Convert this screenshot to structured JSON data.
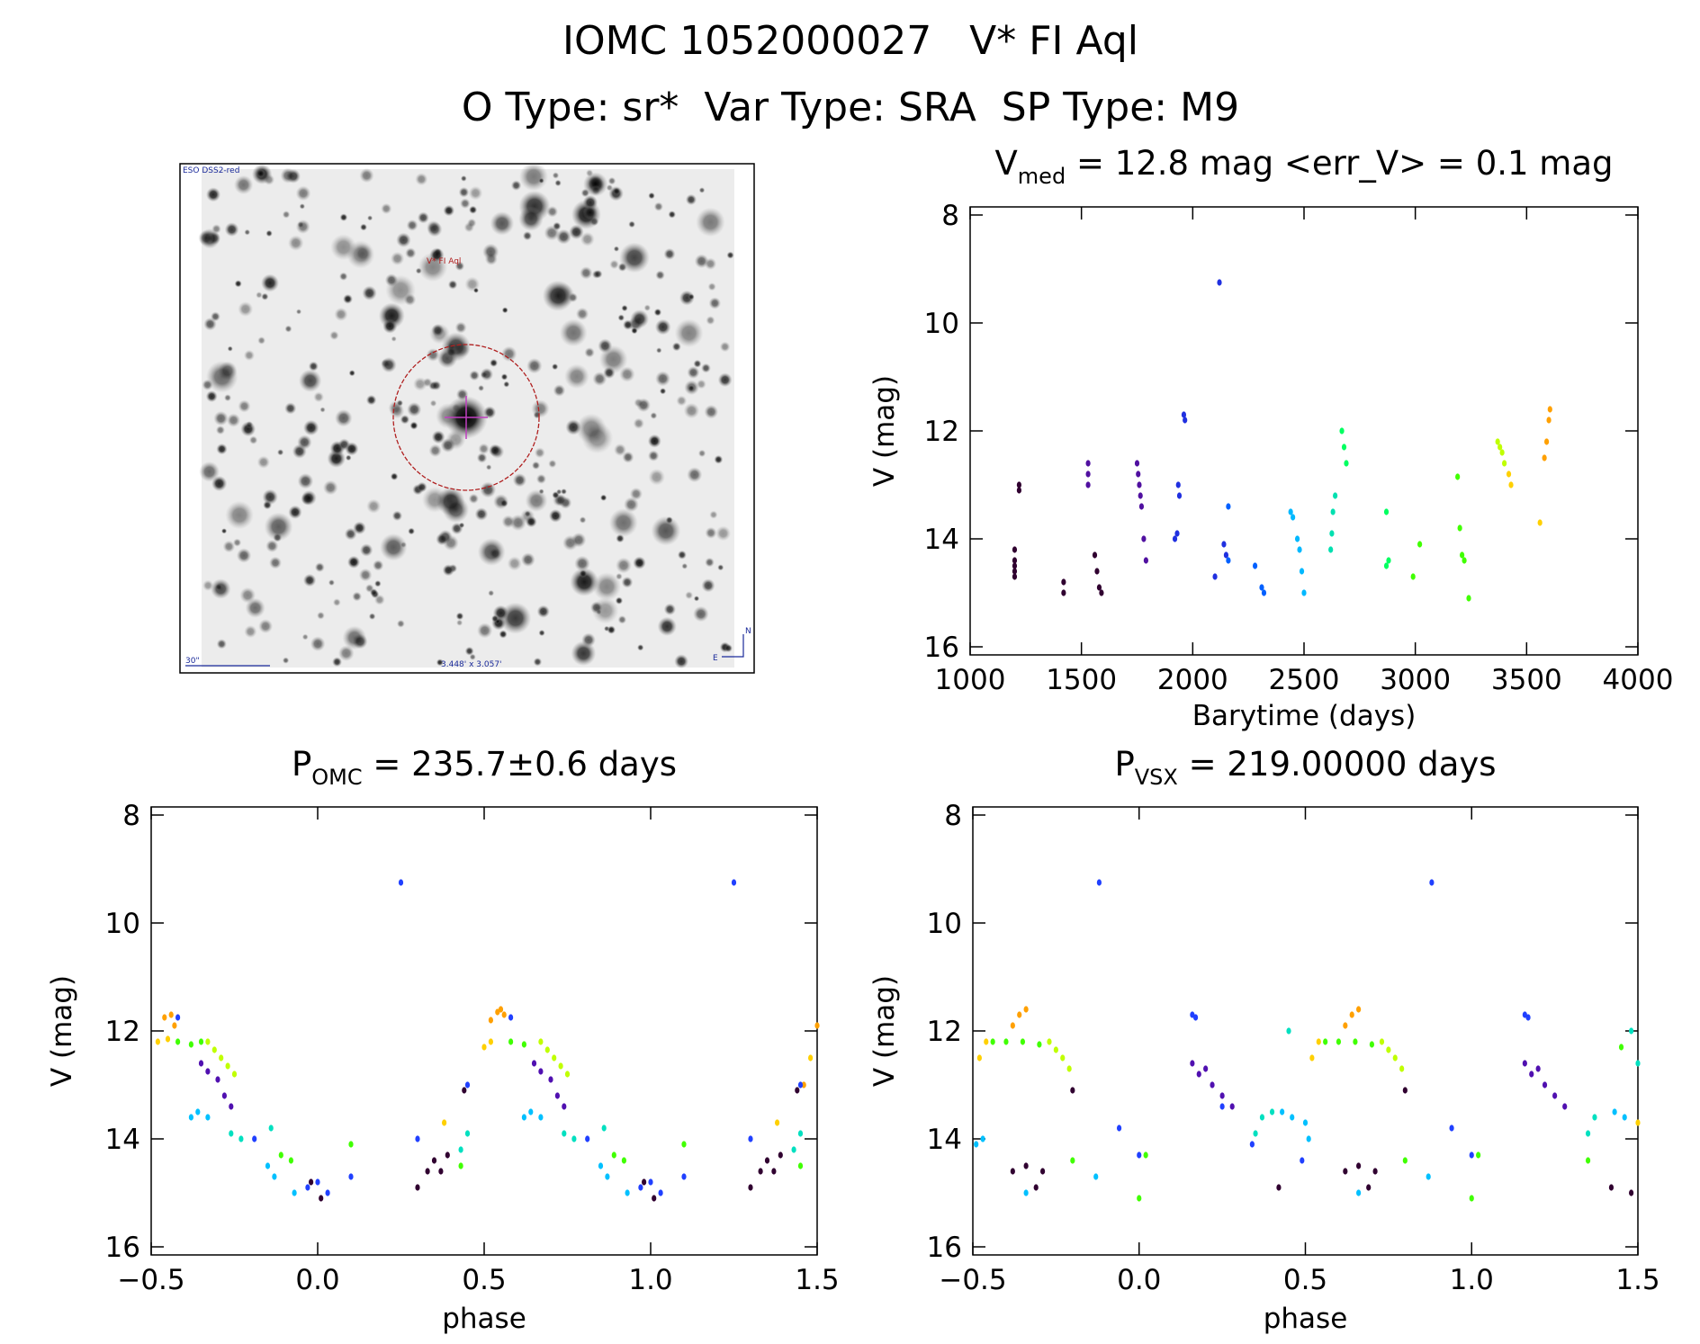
{
  "header": {
    "title": "IOMC 1052000027   V* FI Aql",
    "subtitle": "O Type: sr*  Var Type: SRA  SP Type: M9"
  },
  "image_panel": {
    "survey": "ESO DSS2-red",
    "target": "V* FI Aql",
    "scale": "30\"",
    "size": "3.448' x 3.057'",
    "north": "N",
    "east": "E"
  },
  "chart_data": [
    {
      "type": "scatter",
      "title": {
        "text": "V",
        "sub": "med",
        "rest": " = 12.8 mag <err_V> = 0.1 mag"
      },
      "x_label": "Barytime (days)",
      "y_label": "V (mag)",
      "xlim": [
        1000,
        4000
      ],
      "xticks": [
        1000,
        1500,
        2000,
        2500,
        3000,
        3500,
        4000
      ],
      "ylim": [
        16.15,
        7.85
      ],
      "yticks": [
        8,
        10,
        12,
        14,
        16
      ],
      "series": [
        {
          "color": "#300030",
          "x": [
            1200,
            1200,
            1200,
            1200,
            1200,
            1220,
            1220,
            1420,
            1420,
            1560,
            1570,
            1580,
            1590
          ],
          "values": [
            14.2,
            14.4,
            14.5,
            14.6,
            14.7,
            13.0,
            13.1,
            14.8,
            15.0,
            14.3,
            14.6,
            14.9,
            15.0
          ]
        },
        {
          "color": "#5010a0",
          "x": [
            1530,
            1530,
            1530,
            1750,
            1755,
            1760,
            1765,
            1770,
            1780,
            1790
          ],
          "values": [
            12.6,
            12.8,
            13.0,
            12.6,
            12.8,
            13.0,
            13.2,
            13.4,
            14.0,
            14.4
          ]
        },
        {
          "color": "#2030e0",
          "x": [
            1920,
            1930,
            1935,
            1940,
            1960,
            1965,
            2100,
            2120,
            2140,
            2150
          ],
          "values": [
            14.0,
            13.9,
            13.0,
            13.2,
            11.7,
            11.8,
            14.7,
            9.25,
            14.1,
            14.3
          ]
        },
        {
          "color": "#0060ff",
          "x": [
            2160,
            2160,
            2280,
            2310,
            2320
          ],
          "values": [
            13.4,
            14.4,
            14.5,
            14.9,
            15.0
          ]
        },
        {
          "color": "#00b8ff",
          "x": [
            2440,
            2450,
            2470,
            2480,
            2490,
            2500
          ],
          "values": [
            13.5,
            13.6,
            14.0,
            14.2,
            14.6,
            15.0
          ]
        },
        {
          "color": "#00e0b0",
          "x": [
            2620,
            2625,
            2630,
            2640
          ],
          "values": [
            14.2,
            13.9,
            13.5,
            13.2
          ]
        },
        {
          "color": "#00ff60",
          "x": [
            2670,
            2680,
            2690,
            2870,
            2870,
            2880
          ],
          "values": [
            12.0,
            12.3,
            12.6,
            13.5,
            14.5,
            14.4
          ]
        },
        {
          "color": "#40ff00",
          "x": [
            2990,
            3020,
            3190,
            3200,
            3210,
            3220,
            3240
          ],
          "values": [
            14.7,
            14.1,
            12.85,
            13.8,
            14.3,
            14.4,
            15.1
          ]
        },
        {
          "color": "#c0ff00",
          "x": [
            3370,
            3380,
            3390,
            3400
          ],
          "values": [
            12.2,
            12.3,
            12.4,
            12.6
          ]
        },
        {
          "color": "#ffd000",
          "x": [
            3420,
            3430,
            3560
          ],
          "values": [
            12.8,
            13.0,
            13.7
          ]
        },
        {
          "color": "#ffa000",
          "x": [
            3580,
            3590,
            3600,
            3605
          ],
          "values": [
            12.5,
            12.2,
            11.8,
            11.6
          ]
        }
      ]
    },
    {
      "type": "scatter",
      "title": {
        "text": "P",
        "sub": "OMC",
        "rest": " = 235.7±0.6 days"
      },
      "x_label": "phase",
      "y_label": "V (mag)",
      "xlim": [
        -0.5,
        1.5
      ],
      "xticks": [
        {
          "value": -0.5,
          "label": "−0.5"
        },
        {
          "value": 0,
          "label": "0.0"
        },
        0.5,
        {
          "value": 1,
          "label": "1.0"
        },
        1.5
      ],
      "ylim": [
        16.15,
        7.85
      ],
      "yticks": [
        8,
        10,
        12,
        14,
        16
      ],
      "series": [
        {
          "color": "#ffa000",
          "x": [
            -0.46,
            -0.44,
            -0.43,
            0.52,
            0.54,
            0.55,
            0.56,
            1.46,
            1.5
          ],
          "values": [
            11.75,
            11.7,
            11.9,
            11.8,
            11.65,
            11.6,
            11.7,
            13.0,
            11.9
          ]
        },
        {
          "color": "#ffd000",
          "x": [
            -0.48,
            -0.45,
            0.38,
            0.5,
            0.52,
            1.38,
            1.48
          ],
          "values": [
            12.2,
            12.15,
            13.7,
            12.3,
            12.2,
            13.7,
            12.5
          ]
        },
        {
          "color": "#c0ff00",
          "x": [
            -0.33,
            -0.31,
            -0.29,
            -0.27,
            -0.25,
            0.67,
            0.69,
            0.71,
            0.73,
            0.75
          ],
          "values": [
            12.2,
            12.35,
            12.5,
            12.65,
            12.8,
            12.2,
            12.35,
            12.5,
            12.65,
            12.8
          ]
        },
        {
          "color": "#40ff00",
          "x": [
            -0.42,
            -0.38,
            -0.35,
            -0.11,
            -0.08,
            0.1,
            0.43,
            0.58,
            0.62,
            0.89,
            0.92,
            1.1,
            1.45
          ],
          "values": [
            12.2,
            12.25,
            12.2,
            14.3,
            14.4,
            14.1,
            14.5,
            12.2,
            12.25,
            14.3,
            14.4,
            14.1,
            14.5
          ]
        },
        {
          "color": "#00e0c0",
          "x": [
            -0.26,
            -0.23,
            -0.14,
            0.43,
            0.45,
            0.74,
            0.77,
            0.86,
            1.43,
            1.45
          ],
          "values": [
            13.9,
            14.0,
            13.8,
            14.2,
            13.9,
            13.9,
            14.0,
            13.8,
            14.2,
            13.9
          ]
        },
        {
          "color": "#00c0ff",
          "x": [
            -0.38,
            -0.36,
            -0.33,
            -0.15,
            -0.13,
            -0.07,
            0.62,
            0.64,
            0.67,
            0.85,
            0.87,
            0.93
          ],
          "values": [
            13.6,
            13.5,
            13.6,
            14.5,
            14.7,
            15.0,
            13.6,
            13.5,
            13.6,
            14.5,
            14.7,
            15.0
          ]
        },
        {
          "color": "#2040ff",
          "x": [
            -0.42,
            -0.19,
            -0.03,
            0.0,
            0.03,
            0.1,
            0.25,
            0.3,
            0.45,
            0.58,
            0.81,
            0.97,
            1.0,
            1.03,
            1.1,
            1.25,
            1.3,
            1.45
          ],
          "values": [
            11.75,
            14.0,
            14.9,
            14.8,
            15.0,
            14.7,
            9.25,
            14.0,
            13.0,
            11.75,
            14.0,
            14.9,
            14.8,
            15.0,
            14.7,
            9.25,
            14.0,
            13.0
          ]
        },
        {
          "color": "#5010b0",
          "x": [
            -0.35,
            -0.33,
            -0.3,
            -0.28,
            -0.26,
            0.65,
            0.67,
            0.7,
            0.72,
            0.74
          ],
          "values": [
            12.6,
            12.75,
            12.9,
            13.2,
            13.4,
            12.6,
            12.75,
            12.9,
            13.2,
            13.4
          ]
        },
        {
          "color": "#300030",
          "x": [
            -0.02,
            0.01,
            0.3,
            0.33,
            0.35,
            0.37,
            0.39,
            0.44,
            0.98,
            1.01,
            1.3,
            1.33,
            1.35,
            1.37,
            1.39,
            1.44
          ],
          "values": [
            14.8,
            15.1,
            14.9,
            14.6,
            14.4,
            14.6,
            14.3,
            13.1,
            14.8,
            15.1,
            14.9,
            14.6,
            14.4,
            14.6,
            14.3,
            13.1
          ]
        }
      ]
    },
    {
      "type": "scatter",
      "title": {
        "text": "P",
        "sub": "VSX",
        "rest": " = 219.00000 days"
      },
      "x_label": "phase",
      "y_label": "V (mag)",
      "xlim": [
        -0.5,
        1.5
      ],
      "xticks": [
        {
          "value": -0.5,
          "label": "−0.5"
        },
        {
          "value": 0,
          "label": "0.0"
        },
        0.5,
        {
          "value": 1,
          "label": "1.0"
        },
        1.5
      ],
      "ylim": [
        16.15,
        7.85
      ],
      "yticks": [
        8,
        10,
        12,
        14,
        16
      ],
      "series": [
        {
          "color": "#ffa000",
          "x": [
            -0.38,
            -0.36,
            -0.34,
            0.62,
            0.64,
            0.66
          ],
          "values": [
            11.9,
            11.7,
            11.6,
            11.9,
            11.7,
            11.6
          ]
        },
        {
          "color": "#ffd000",
          "x": [
            -0.48,
            -0.46,
            0.52,
            0.54,
            1.5
          ],
          "values": [
            12.5,
            12.2,
            12.5,
            12.2,
            13.7
          ]
        },
        {
          "color": "#c0ff00",
          "x": [
            -0.27,
            -0.25,
            -0.23,
            -0.21,
            0.73,
            0.75,
            0.77,
            0.79
          ],
          "values": [
            12.2,
            12.35,
            12.5,
            12.7,
            12.2,
            12.35,
            12.5,
            12.7
          ]
        },
        {
          "color": "#40ff00",
          "x": [
            -0.44,
            -0.4,
            -0.35,
            -0.3,
            -0.2,
            0.0,
            0.02,
            0.56,
            0.6,
            0.65,
            0.7,
            0.8,
            1.0,
            1.02,
            1.35,
            1.45
          ],
          "values": [
            12.2,
            12.2,
            12.2,
            12.25,
            14.4,
            15.1,
            14.3,
            12.2,
            12.2,
            12.2,
            12.25,
            14.4,
            15.1,
            14.3,
            14.4,
            12.3
          ]
        },
        {
          "color": "#00e0c0",
          "x": [
            0.35,
            0.37,
            0.4,
            0.45,
            1.35,
            1.37,
            1.48,
            1.5
          ],
          "values": [
            13.9,
            13.6,
            13.5,
            12.0,
            13.9,
            13.6,
            12.0,
            12.6
          ]
        },
        {
          "color": "#00c0ff",
          "x": [
            -0.49,
            -0.47,
            -0.34,
            -0.13,
            0.43,
            0.46,
            0.5,
            0.51,
            0.66,
            0.87,
            1.43,
            1.46
          ],
          "values": [
            14.1,
            14.0,
            15.0,
            14.7,
            13.5,
            13.6,
            13.7,
            14.0,
            15.0,
            14.7,
            13.5,
            13.6
          ]
        },
        {
          "color": "#2040ff",
          "x": [
            -0.12,
            -0.06,
            0.0,
            0.16,
            0.17,
            0.25,
            0.34,
            0.49,
            0.88,
            0.94,
            1.0,
            1.16,
            1.17
          ],
          "values": [
            9.25,
            13.8,
            14.3,
            11.7,
            11.75,
            13.4,
            14.1,
            14.4,
            9.25,
            13.8,
            14.3,
            11.7,
            11.75
          ]
        },
        {
          "color": "#5010b0",
          "x": [
            0.16,
            0.18,
            0.2,
            0.22,
            0.25,
            0.28,
            1.16,
            1.18,
            1.2,
            1.22,
            1.25,
            1.28
          ],
          "values": [
            12.6,
            12.8,
            12.7,
            13.0,
            13.2,
            13.4,
            12.6,
            12.8,
            12.7,
            13.0,
            13.2,
            13.4
          ]
        },
        {
          "color": "#300030",
          "x": [
            -0.38,
            -0.34,
            -0.31,
            -0.29,
            -0.2,
            0.42,
            0.62,
            0.66,
            0.69,
            0.71,
            0.8,
            1.42,
            1.48
          ],
          "values": [
            14.6,
            14.5,
            14.9,
            14.6,
            13.1,
            14.9,
            14.6,
            14.5,
            14.9,
            14.6,
            13.1,
            14.9,
            15.0
          ]
        }
      ]
    }
  ]
}
